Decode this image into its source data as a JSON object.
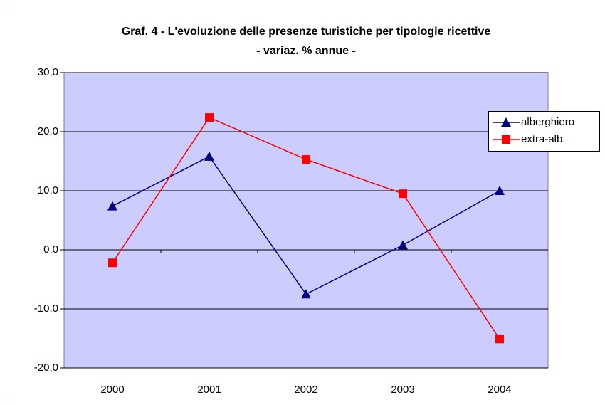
{
  "chart_data": {
    "type": "line",
    "title": [
      "Graf. 4 - L'evoluzione delle presenze turistiche per tipologie ricettive",
      "- variaz. % annue -"
    ],
    "categories": [
      "2000",
      "2001",
      "2002",
      "2003",
      "2004"
    ],
    "series": [
      {
        "name": "alberghiero",
        "color": "#000080",
        "marker": "triangle",
        "values": [
          7.4,
          15.8,
          -7.5,
          0.8,
          10.0
        ]
      },
      {
        "name": "extra-alb.",
        "color": "#ff0000",
        "marker": "square",
        "values": [
          -2.2,
          22.4,
          15.3,
          9.5,
          -15.1
        ]
      }
    ],
    "ylim": [
      -20,
      30
    ],
    "yticks": [
      {
        "value": -20,
        "label": "-20,0"
      },
      {
        "value": -10,
        "label": "-10,0"
      },
      {
        "value": 0,
        "label": "0,0"
      },
      {
        "value": 10,
        "label": "10,0"
      },
      {
        "value": 20,
        "label": "20,0"
      },
      {
        "value": 30,
        "label": "30,0"
      }
    ],
    "grid": true,
    "plot_background": "#ccccff",
    "legend": "right"
  }
}
